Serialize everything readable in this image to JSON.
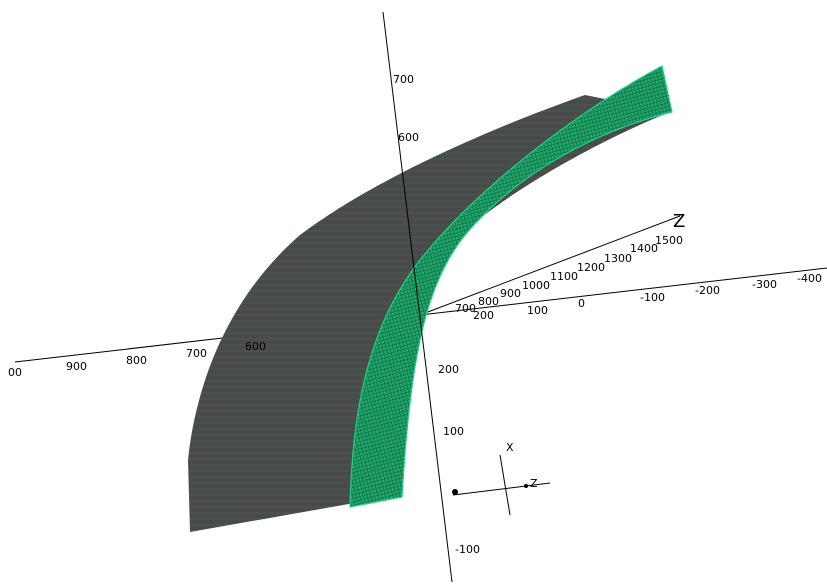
{
  "axes": {
    "vertical": {
      "ticks": [
        "700",
        "600",
        "200",
        "100",
        "-100"
      ]
    },
    "horizontal": {
      "ticks": [
        "00",
        "900",
        "800",
        "700",
        "600"
      ]
    },
    "depth": {
      "label": "Z",
      "ticks": [
        "700",
        "800",
        "900",
        "1000",
        "1100",
        "1200",
        "1300",
        "1400",
        "1500"
      ]
    },
    "lateral": {
      "ticks": [
        "200",
        "100",
        "0",
        "-100",
        "-200",
        "-300",
        "-400"
      ]
    }
  },
  "triad": {
    "x": "X",
    "z": "Z"
  }
}
